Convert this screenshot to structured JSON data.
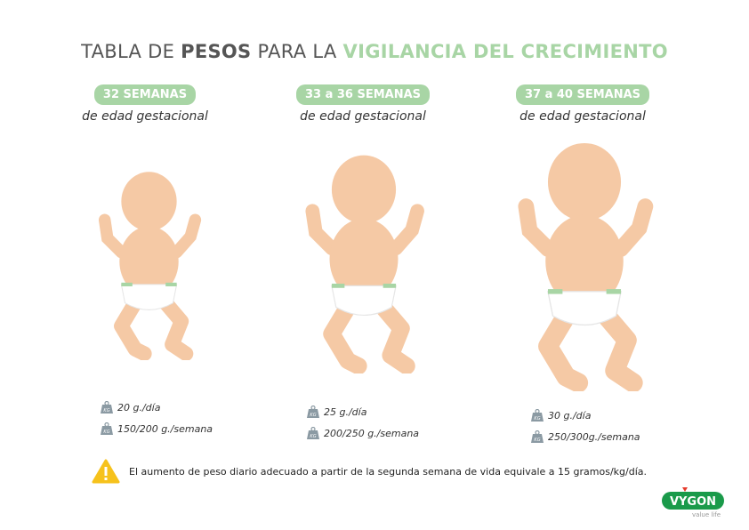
{
  "title": {
    "part1": "TABLA DE ",
    "part2": "PESOS",
    "part3": " PARA LA ",
    "part4": "VIGILANCIA DEL CRECIMIENTO"
  },
  "colors": {
    "accent": "#a8d5a5",
    "skin": "#f5c9a5",
    "brand": "#1a9a4a",
    "warning": "#f6c21c"
  },
  "columns": [
    {
      "label": "32 SEMANAS",
      "subtitle": "de edad gestacional",
      "daily": "20 g./día",
      "weekly": "150/200 g./semana"
    },
    {
      "label": "33 a 36 SEMANAS",
      "subtitle": "de edad gestacional",
      "daily": "25 g./día",
      "weekly": "200/250 g./semana"
    },
    {
      "label": "37 a 40 SEMANAS",
      "subtitle": "de edad gestacional",
      "daily": "30 g./día",
      "weekly": "250/300g./semana"
    }
  ],
  "icons": {
    "stat": "weight-kg-icon",
    "note": "warning-icon"
  },
  "note": "El aumento de peso diario adecuado a partir de la segunda semana de vida equivale a 15 gramos/kg/día.",
  "logo": {
    "name": "VYGON",
    "tagline": "value life"
  }
}
